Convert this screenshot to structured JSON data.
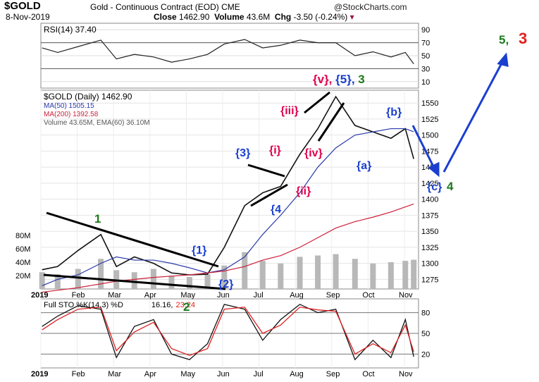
{
  "header": {
    "symbol": "$GOLD",
    "subtitle": "Gold - Continuous Contract (EOD) CME",
    "logo": "@StockCharts.com",
    "date": "8-Nov-2019",
    "close_label": "Close",
    "close_value": "1462.90",
    "volume_label": "Volume",
    "volume_value": "43.6M",
    "chg_label": "Chg",
    "chg_value": "-3.50 (-0.24%)"
  },
  "colors": {
    "price": "#111111",
    "ma50": "#2a3aa8",
    "ma200": "#cc1f3a",
    "volume": "#b8b8b8",
    "rsi_fill": "#3d8b3d",
    "sto_k": "#111111",
    "sto_d": "#dd2222",
    "wave_red": "#e0004d",
    "wave_blue": "#1a3fd0",
    "wave_green": "#1b7a1b"
  },
  "chart_data": [
    {
      "type": "line",
      "panel": "RSI",
      "legend": "RSI(14) 37.40",
      "y_ticks": [
        "90",
        "70",
        "50",
        "30",
        "10"
      ],
      "ylim": [
        0,
        100
      ],
      "x": [
        "2019-01-02",
        "2019-01-15",
        "2019-02-01",
        "2019-02-20",
        "2019-03-05",
        "2019-03-20",
        "2019-04-05",
        "2019-04-20",
        "2019-05-05",
        "2019-05-20",
        "2019-06-03",
        "2019-06-20",
        "2019-07-05",
        "2019-07-20",
        "2019-08-05",
        "2019-08-20",
        "2019-09-04",
        "2019-09-20",
        "2019-10-05",
        "2019-10-20",
        "2019-11-01",
        "2019-11-08"
      ],
      "values": [
        62,
        55,
        64,
        74,
        45,
        52,
        48,
        40,
        45,
        52,
        68,
        75,
        62,
        66,
        74,
        70,
        70,
        50,
        56,
        48,
        55,
        37.4
      ]
    },
    {
      "type": "line",
      "panel": "Price",
      "legend": [
        "$GOLD (Daily) 1462.90",
        "MA(50) 1505.15",
        "MA(200) 1392.58",
        "Volume 43.65M, EMA(60) 36.10M"
      ],
      "y_ticks": [
        "1550",
        "1525",
        "1500",
        "1475",
        "1450",
        "1425",
        "1400",
        "1375",
        "1350",
        "1325",
        "1300",
        "1275"
      ],
      "ylim": [
        1260,
        1570
      ],
      "volume_ticks": [
        "80M",
        "60M",
        "40M",
        "20M"
      ],
      "x_ticks": [
        "2019",
        "Feb",
        "Mar",
        "Apr",
        "May",
        "Jun",
        "Jul",
        "Aug",
        "Sep",
        "Oct",
        "Nov"
      ],
      "x": [
        "2019-01-02",
        "2019-01-15",
        "2019-02-01",
        "2019-02-20",
        "2019-03-05",
        "2019-03-20",
        "2019-04-05",
        "2019-04-20",
        "2019-05-05",
        "2019-05-20",
        "2019-06-03",
        "2019-06-20",
        "2019-07-05",
        "2019-07-20",
        "2019-08-05",
        "2019-08-20",
        "2019-09-04",
        "2019-09-20",
        "2019-10-05",
        "2019-10-20",
        "2019-11-01",
        "2019-11-08"
      ],
      "series": [
        {
          "name": "$GOLD (Daily)",
          "values": [
            1290,
            1295,
            1320,
            1345,
            1295,
            1310,
            1300,
            1285,
            1282,
            1283,
            1325,
            1390,
            1410,
            1420,
            1470,
            1510,
            1560,
            1515,
            1505,
            1495,
            1510,
            1462.9
          ]
        },
        {
          "name": "MA(50)",
          "values": [
            1265,
            1275,
            1282,
            1300,
            1310,
            1305,
            1305,
            1300,
            1293,
            1285,
            1290,
            1310,
            1345,
            1375,
            1410,
            1450,
            1480,
            1500,
            1505,
            1510,
            1510,
            1505.15
          ]
        },
        {
          "name": "MA(200)",
          "values": [
            1255,
            1258,
            1262,
            1268,
            1272,
            1275,
            1278,
            1280,
            1282,
            1285,
            1288,
            1295,
            1305,
            1312,
            1325,
            1340,
            1355,
            1365,
            1372,
            1380,
            1388,
            1392.58
          ]
        }
      ],
      "volume_values": [
        25,
        22,
        30,
        45,
        28,
        25,
        30,
        20,
        18,
        22,
        35,
        55,
        42,
        38,
        48,
        50,
        52,
        45,
        38,
        40,
        42,
        43.65
      ]
    },
    {
      "type": "line",
      "panel": "Stochastic",
      "legend_prefix": "Full STO %K(14,3) %D",
      "legend_k": "16.16,",
      "legend_d": "23.24",
      "y_ticks": [
        "80",
        "50",
        "20"
      ],
      "ylim": [
        0,
        100
      ],
      "x_ticks": [
        "2019",
        "Feb",
        "Mar",
        "Apr",
        "May",
        "Jun",
        "Jul",
        "Aug",
        "Sep",
        "Oct",
        "Nov"
      ],
      "x": [
        "2019-01-02",
        "2019-01-15",
        "2019-02-01",
        "2019-02-20",
        "2019-03-05",
        "2019-03-20",
        "2019-04-05",
        "2019-04-20",
        "2019-05-05",
        "2019-05-20",
        "2019-06-03",
        "2019-06-20",
        "2019-07-05",
        "2019-07-20",
        "2019-08-05",
        "2019-08-20",
        "2019-09-04",
        "2019-09-20",
        "2019-10-05",
        "2019-10-20",
        "2019-11-01",
        "2019-11-08"
      ],
      "series": [
        {
          "name": "%K",
          "values": [
            60,
            75,
            90,
            85,
            15,
            60,
            70,
            20,
            12,
            35,
            92,
            85,
            40,
            70,
            92,
            80,
            85,
            12,
            40,
            15,
            70,
            16.16
          ]
        },
        {
          "name": "%D",
          "values": [
            55,
            70,
            85,
            88,
            25,
            52,
            66,
            28,
            18,
            28,
            85,
            88,
            50,
            62,
            88,
            84,
            82,
            20,
            35,
            22,
            62,
            23.24
          ]
        }
      ]
    }
  ],
  "annotations": {
    "main_wave_1": "1",
    "main_wave_2": "2",
    "main_wave_3_prefix": "{v}, ",
    "main_wave_3_mid": "{5}, ",
    "main_wave_3": "3",
    "target_5": "5,",
    "target_3": "3",
    "wave_c_green": "4",
    "sub_1": "{1}",
    "sub_2": "{2}",
    "sub_3": "{3}",
    "sub_4": "{4",
    "sub_i": "{i}",
    "sub_ii": "{ii}",
    "sub_iii": "{iii}",
    "sub_iv": "{iv}",
    "sub_a": "{a}",
    "sub_b": "{b}",
    "sub_c": "{c}"
  }
}
